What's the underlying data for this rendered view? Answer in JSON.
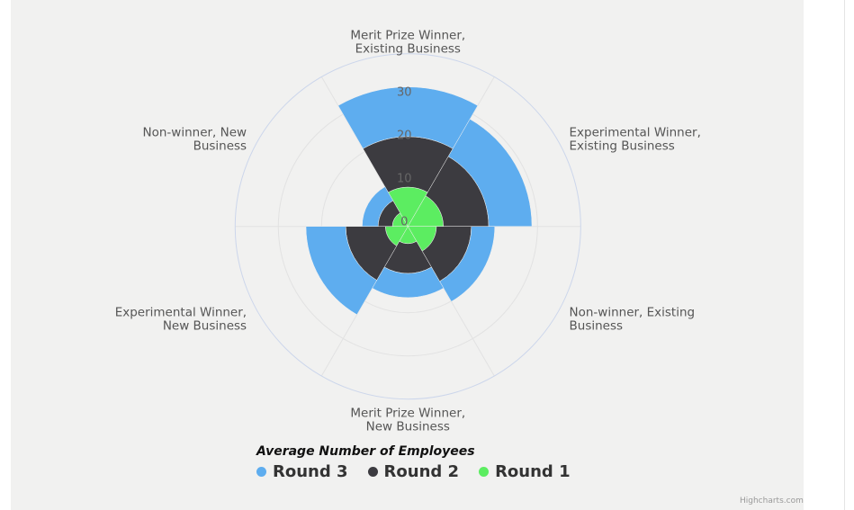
{
  "chart_data": {
    "type": "polar-stacked-column",
    "categories": [
      "Merit Prize Winner, Existing Business",
      "Experimental Winner, Existing Business",
      "Non-winner, Existing Business",
      "Merit Prize Winner, New Business",
      "Experimental Winner, New Business",
      "Non-winner, New Business"
    ],
    "category_lines": [
      [
        "Merit Prize Winner,",
        "Existing Business"
      ],
      [
        "Experimental Winner,",
        "Existing Business"
      ],
      [
        "Non-winner, Existing",
        "Business"
      ],
      [
        "Merit Prize Winner,",
        "New Business"
      ],
      [
        "Experimental Winner,",
        "New Business"
      ],
      [
        "Non-winner, New",
        "Business"
      ]
    ],
    "series": [
      {
        "name": "Round 1",
        "color": "#5ced61",
        "values": [
          9.1,
          8.2,
          6.6,
          4.0,
          5.2,
          3.6
        ]
      },
      {
        "name": "Round 2",
        "color": "#3c3b40",
        "values": [
          11.7,
          10.5,
          8.1,
          6.9,
          9.2,
          3.3
        ]
      },
      {
        "name": "Round 3",
        "color": "#5eadef",
        "values": [
          11.5,
          10.0,
          5.4,
          5.6,
          9.2,
          3.7
        ]
      }
    ],
    "stacked": true,
    "ylim": [
      0,
      40
    ],
    "yticks": [
      "0",
      "10",
      "20",
      "30"
    ],
    "legend_title": "Average Number of Employees",
    "legend_placement": "bottom",
    "grid": true
  },
  "legend": {
    "items": [
      {
        "label": "Round 3",
        "color": "#5eadef"
      },
      {
        "label": "Round 2",
        "color": "#3c3b40"
      },
      {
        "label": "Round 1",
        "color": "#5ced61"
      }
    ]
  },
  "credits": "Highcharts.com"
}
